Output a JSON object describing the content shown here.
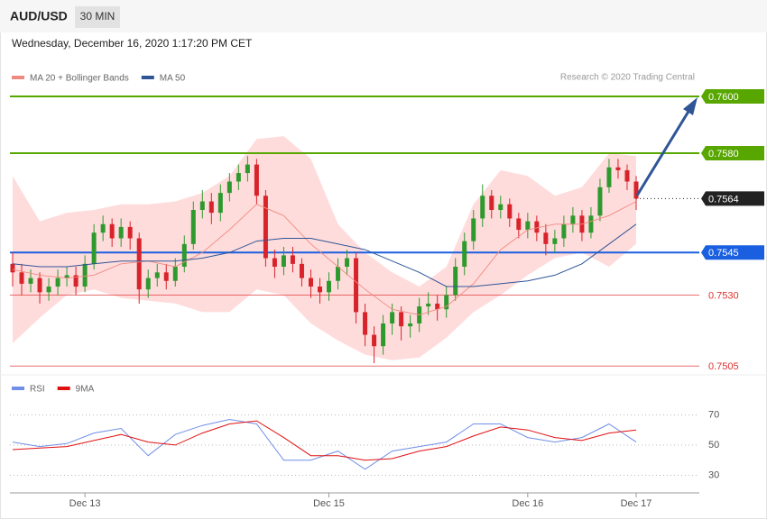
{
  "header": {
    "symbol": "AUD/USD",
    "interval": "30 MIN",
    "datetime": "Wednesday, December 16, 2020 1:17:20 PM CET",
    "credit": "Research © 2020 Trading Central"
  },
  "chart_data": [
    {
      "type": "candlestick",
      "categories": [
        null,
        null,
        null,
        null,
        null,
        null,
        null,
        null,
        "Dec 13",
        null,
        null,
        null,
        null,
        null,
        null,
        null,
        null,
        null,
        null,
        null,
        null,
        null,
        null,
        null,
        null,
        null,
        null,
        null,
        null,
        null,
        null,
        null,
        null,
        null,
        null,
        "Dec 15",
        null,
        null,
        null,
        null,
        null,
        null,
        null,
        null,
        null,
        null,
        null,
        null,
        null,
        null,
        null,
        null,
        null,
        null,
        null,
        null,
        null,
        "Dec 16",
        null,
        null,
        null,
        null,
        null,
        null,
        null,
        null,
        null,
        null,
        null,
        "Dec 17"
      ],
      "open": [
        0.7541,
        0.7538,
        0.7534,
        0.7536,
        0.7531,
        0.7533,
        0.7536,
        0.7537,
        0.7533,
        0.7541,
        0.7552,
        0.7555,
        0.755,
        0.7554,
        0.755,
        0.7532,
        0.7536,
        0.7538,
        0.7535,
        0.754,
        0.7548,
        0.756,
        0.7563,
        0.7559,
        0.7566,
        0.757,
        0.7573,
        0.7576,
        0.7565,
        0.7543,
        0.754,
        0.7544,
        0.7541,
        0.7536,
        0.7533,
        0.7531,
        0.7535,
        0.754,
        0.7543,
        0.7524,
        0.7516,
        0.7512,
        0.752,
        0.7524,
        0.7519,
        0.752,
        0.7526,
        0.7527,
        0.7525,
        0.753,
        0.754,
        0.7549,
        0.7557,
        0.7565,
        0.756,
        0.7562,
        0.7557,
        0.7553,
        0.7556,
        0.7552,
        0.7548,
        0.755,
        0.7555,
        0.7558,
        0.7552,
        0.7558,
        0.7568,
        0.7575,
        0.7574,
        0.757
      ],
      "high": [
        0.7545,
        0.7541,
        0.7539,
        0.7538,
        0.7536,
        0.7539,
        0.754,
        0.754,
        0.7544,
        0.7555,
        0.7558,
        0.7557,
        0.7557,
        0.7556,
        0.7552,
        0.7539,
        0.7541,
        0.7541,
        0.7543,
        0.7551,
        0.7563,
        0.7567,
        0.7566,
        0.7569,
        0.7573,
        0.7576,
        0.7579,
        0.7578,
        0.7567,
        0.7546,
        0.7547,
        0.7547,
        0.7543,
        0.7539,
        0.7536,
        0.7538,
        0.7543,
        0.7546,
        0.7545,
        0.7527,
        0.7519,
        0.7523,
        0.7527,
        0.7526,
        0.7523,
        0.7529,
        0.7531,
        0.753,
        0.7533,
        0.7543,
        0.7552,
        0.756,
        0.7569,
        0.7567,
        0.7565,
        0.7564,
        0.7559,
        0.7559,
        0.7558,
        0.7555,
        0.7553,
        0.7558,
        0.7561,
        0.756,
        0.7561,
        0.7571,
        0.7578,
        0.7578,
        0.7576,
        0.7572
      ],
      "low": [
        0.7533,
        0.753,
        0.7531,
        0.7527,
        0.7528,
        0.753,
        0.7533,
        0.753,
        0.7531,
        0.7539,
        0.7549,
        0.7547,
        0.7547,
        0.7546,
        0.7527,
        0.7529,
        0.7533,
        0.7532,
        0.7533,
        0.7538,
        0.7546,
        0.7557,
        0.7555,
        0.7556,
        0.7563,
        0.7567,
        0.757,
        0.7562,
        0.754,
        0.7536,
        0.7537,
        0.7538,
        0.7533,
        0.7529,
        0.7527,
        0.7528,
        0.7532,
        0.7537,
        0.752,
        0.7512,
        0.7506,
        0.7509,
        0.7516,
        0.7514,
        0.7515,
        0.7517,
        0.7523,
        0.7521,
        0.7522,
        0.7528,
        0.7537,
        0.7546,
        0.7554,
        0.7557,
        0.7557,
        0.7554,
        0.755,
        0.755,
        0.7549,
        0.7544,
        0.7545,
        0.7547,
        0.7552,
        0.7549,
        0.755,
        0.7556,
        0.7566,
        0.7571,
        0.7567,
        0.756
      ],
      "close": [
        0.7538,
        0.7534,
        0.7536,
        0.7531,
        0.7533,
        0.7536,
        0.7537,
        0.7533,
        0.7541,
        0.7552,
        0.7555,
        0.755,
        0.7554,
        0.755,
        0.7532,
        0.7536,
        0.7538,
        0.7535,
        0.754,
        0.7548,
        0.756,
        0.7563,
        0.7559,
        0.7566,
        0.757,
        0.7573,
        0.7576,
        0.7565,
        0.7543,
        0.754,
        0.7544,
        0.7541,
        0.7536,
        0.7533,
        0.7531,
        0.7535,
        0.754,
        0.7543,
        0.7524,
        0.7516,
        0.7512,
        0.752,
        0.7524,
        0.7519,
        0.752,
        0.7526,
        0.7527,
        0.7525,
        0.753,
        0.754,
        0.7549,
        0.7557,
        0.7565,
        0.756,
        0.7562,
        0.7557,
        0.7553,
        0.7556,
        0.7552,
        0.7548,
        0.755,
        0.7555,
        0.7558,
        0.7552,
        0.7558,
        0.7568,
        0.7575,
        0.7574,
        0.757,
        0.7564
      ],
      "up_color": "#2e9a2e",
      "down_color": "#d8232a",
      "x": [
        0,
        3,
        6,
        9,
        12,
        15,
        18,
        21,
        24,
        27,
        30,
        33,
        36,
        39,
        42,
        45,
        48,
        51,
        54,
        57,
        60,
        63,
        66,
        69
      ],
      "series": [
        {
          "name": "MA 20 + Bollinger Bands",
          "color": "#f08a80",
          "band_color": "#ffdcdc",
          "values": [
            0.7539,
            0.7537,
            0.7536,
            0.7537,
            0.7541,
            0.7542,
            0.754,
            0.7545,
            0.7553,
            0.7562,
            0.7558,
            0.7548,
            0.754,
            0.7532,
            0.7525,
            0.7523,
            0.7526,
            0.7534,
            0.7546,
            0.7553,
            0.7555,
            0.7555,
            0.7558,
            0.7563
          ],
          "upper": [
            0.7572,
            0.7556,
            0.7559,
            0.756,
            0.7562,
            0.7562,
            0.7563,
            0.7566,
            0.7572,
            0.7585,
            0.7586,
            0.7578,
            0.7555,
            0.7545,
            0.7538,
            0.7533,
            0.754,
            0.7562,
            0.7574,
            0.7572,
            0.7565,
            0.7568,
            0.758,
            0.7579
          ],
          "lower": [
            0.7513,
            0.7522,
            0.753,
            0.7532,
            0.7529,
            0.7528,
            0.7527,
            0.7524,
            0.7524,
            0.7532,
            0.753,
            0.752,
            0.7514,
            0.7509,
            0.7507,
            0.7508,
            0.7515,
            0.7524,
            0.753,
            0.7537,
            0.7543,
            0.7545,
            0.754,
            0.7548
          ]
        },
        {
          "name": "MA 50",
          "color": "#2f5597",
          "values": [
            0.7541,
            0.754,
            0.754,
            0.7541,
            0.7542,
            0.7542,
            0.7542,
            0.7543,
            0.7545,
            0.7549,
            0.755,
            0.755,
            0.7548,
            0.7546,
            0.7542,
            0.7538,
            0.7533,
            0.7533,
            0.7534,
            0.7535,
            0.7537,
            0.7541,
            0.7548,
            0.7555
          ]
        }
      ],
      "ylim": [
        0.7504,
        0.7604
      ],
      "levels": [
        {
          "value": 0.76,
          "label": "0.7600",
          "color": "#58a700",
          "box": true,
          "dotted": false
        },
        {
          "value": 0.758,
          "label": "0.7580",
          "color": "#58a700",
          "box": true,
          "dotted": false
        },
        {
          "value": 0.7564,
          "label": "0.7564",
          "color": "#222222",
          "box": true,
          "dotted": true
        },
        {
          "value": 0.7545,
          "label": "0.7545",
          "color": "#1a5fe0",
          "box": true,
          "dotted": false
        },
        {
          "value": 0.753,
          "label": "0.7530",
          "color": "#e03030",
          "box": false,
          "dotted": false
        },
        {
          "value": 0.7505,
          "label": "0.7505",
          "color": "#e03030",
          "box": false,
          "dotted": false
        }
      ]
    },
    {
      "type": "line",
      "x": [
        0,
        3,
        6,
        9,
        12,
        15,
        18,
        21,
        24,
        27,
        30,
        33,
        36,
        39,
        42,
        45,
        48,
        51,
        54,
        57,
        60,
        63,
        66,
        69
      ],
      "series": [
        {
          "name": "RSI",
          "color": "#6f8fe8",
          "values": [
            52,
            49,
            51,
            58,
            61,
            43,
            57,
            63,
            67,
            64,
            40,
            40,
            46,
            34,
            46,
            49,
            52,
            64,
            64,
            55,
            52,
            55,
            64,
            52
          ]
        },
        {
          "name": "9MA",
          "color": "#e01010",
          "values": [
            47,
            48,
            49,
            53,
            57,
            52,
            50,
            58,
            64,
            66,
            55,
            43,
            43,
            40,
            41,
            46,
            49,
            56,
            62,
            60,
            55,
            53,
            58,
            60
          ]
        }
      ],
      "ylim": [
        24,
        84
      ],
      "yticks": [
        30,
        50,
        70
      ],
      "grid": true
    }
  ]
}
